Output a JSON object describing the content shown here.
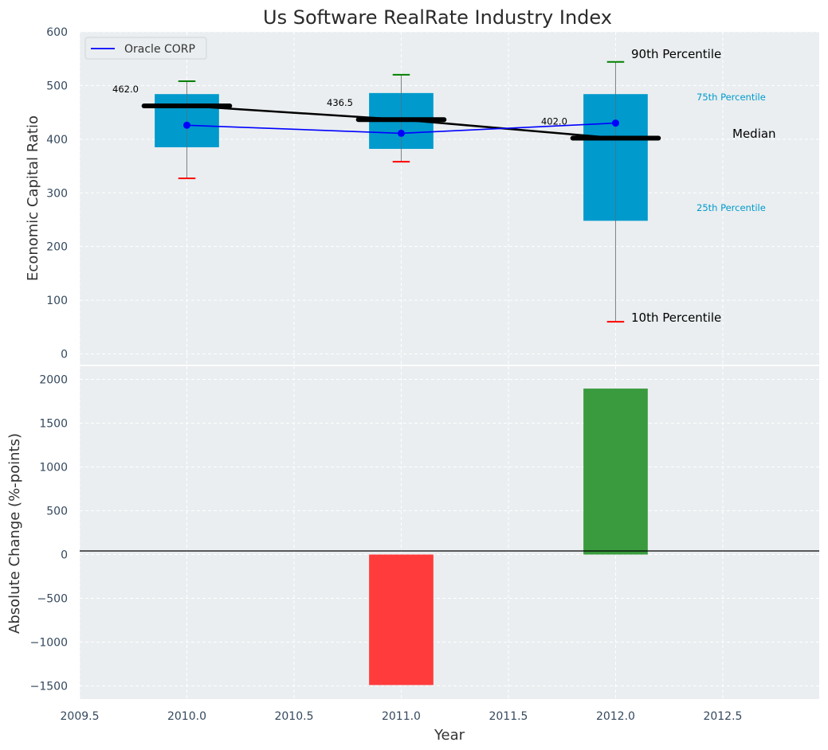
{
  "chart_data": [
    {
      "type": "box",
      "title": "Us Software RealRate Industry Index",
      "xlabel": "",
      "ylabel": "Economic Capital Ratio",
      "ylim": [
        -20,
        600
      ],
      "yticks": [
        0,
        100,
        200,
        300,
        400,
        500,
        600
      ],
      "grid": true,
      "legend": {
        "placement": "top-left",
        "entries": [
          "Oracle CORP"
        ]
      },
      "boxes": [
        {
          "x": 2010,
          "p10": 327,
          "p25": 385,
          "median": 462.0,
          "p75": 484,
          "p90": 508,
          "median_label": "462.0"
        },
        {
          "x": 2011,
          "p10": 358,
          "p25": 382,
          "median": 436.5,
          "p75": 486,
          "p90": 520,
          "median_label": "436.5"
        },
        {
          "x": 2012,
          "p10": 60,
          "p25": 248,
          "median": 402.0,
          "p75": 484,
          "p90": 544,
          "median_label": "402.0"
        }
      ],
      "series": [
        {
          "name": "Oracle CORP",
          "color": "#0000ff",
          "x": [
            2010,
            2011,
            2012
          ],
          "values": [
            426,
            411,
            430
          ]
        }
      ],
      "annotations": {
        "p90": "90th Percentile",
        "p75": "75th Percentile",
        "median": "Median",
        "p25": "25th Percentile",
        "p10": "10th Percentile"
      },
      "colors": {
        "box": "#009acd",
        "p90_cap": "#008000",
        "p10_cap": "#ff0000",
        "median_line": "#000000",
        "background": "#eaeef0"
      }
    },
    {
      "type": "bar",
      "xlabel": "Year",
      "ylabel": "Absolute Change (%-points)",
      "xlim": [
        2009.5,
        2012.95
      ],
      "xticks": [
        "2009.5",
        "2010.0",
        "2010.5",
        "2011.0",
        "2011.5",
        "2012.0",
        "2012.5"
      ],
      "ylim": [
        -1650,
        2150
      ],
      "yticks": [
        "2000",
        "1500",
        "1000",
        "500",
        "0",
        "−500",
        "−1000",
        "−1500"
      ],
      "x": [
        2011,
        2012
      ],
      "values": [
        -1490,
        1895
      ],
      "colors": {
        "negative": "#ff3b3b",
        "positive": "#3a9b3e"
      }
    }
  ]
}
